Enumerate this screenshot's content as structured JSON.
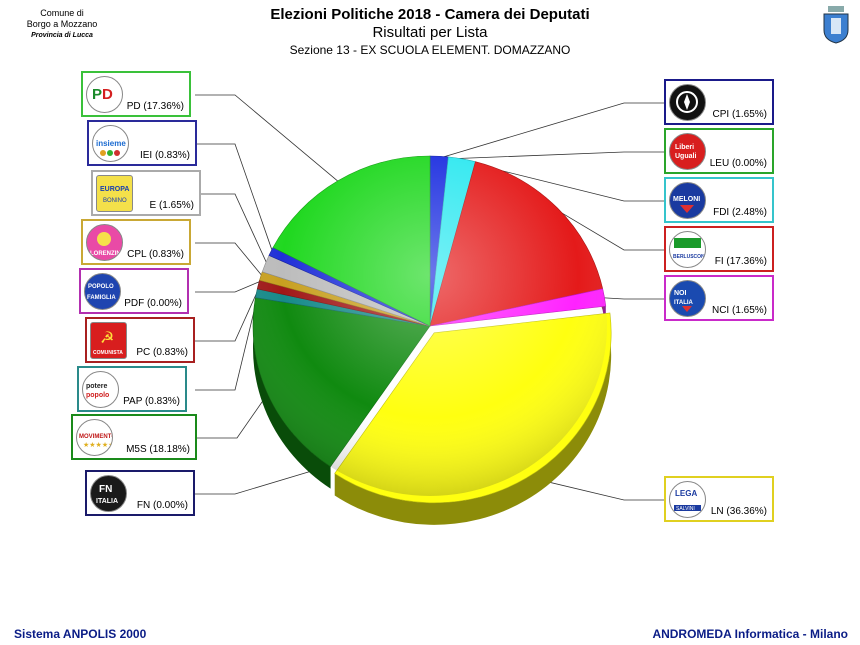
{
  "header": {
    "title": "Elezioni Politiche 2018 - Camera dei Deputati",
    "subtitle": "Risultati per Lista",
    "section": "Sezione 13 - EX SCUOLA ELEMENT. DOMAZZANO"
  },
  "comune": {
    "line1": "Comune di",
    "line2": "Borgo a Mozzano",
    "line3": "Provincia di Lucca"
  },
  "footer": {
    "left": "Sistema ANPOLIS 2000",
    "right": "ANDROMEDA Informatica - Milano"
  },
  "chart_data": {
    "type": "pie",
    "title": "Risultati per Lista",
    "slices": [
      {
        "label": "CPI (1.65%)",
        "name": "CPI",
        "value": 1.65,
        "color": "#1c2ee0"
      },
      {
        "label": "LEU (0.00%)",
        "name": "LEU",
        "value": 0.0,
        "color": "#e01010"
      },
      {
        "label": "FDI (2.48%)",
        "name": "FDI",
        "value": 2.48,
        "color": "#2ee8f0"
      },
      {
        "label": "FI (17.36%)",
        "name": "FI",
        "value": 17.36,
        "color": "#e41a1a"
      },
      {
        "label": "NCI (1.65%)",
        "name": "NCI",
        "value": 1.65,
        "color": "#ff22ff"
      },
      {
        "label": "LN (36.36%)",
        "name": "LN",
        "value": 36.36,
        "color": "#ffff10"
      },
      {
        "label": "FN (0.00%)",
        "name": "FN",
        "value": 0.0,
        "color": "#0a0a50"
      },
      {
        "label": "M5S (18.18%)",
        "name": "M5S",
        "value": 18.18,
        "color": "#108a10"
      },
      {
        "label": "PAP (0.83%)",
        "name": "PAP",
        "value": 0.83,
        "color": "#168a8a"
      },
      {
        "label": "PC (0.83%)",
        "name": "PC",
        "value": 0.83,
        "color": "#a01818"
      },
      {
        "label": "PDF (0.00%)",
        "name": "PDF",
        "value": 0.0,
        "color": "#a01890"
      },
      {
        "label": "CPL (0.83%)",
        "name": "CPL",
        "value": 0.83,
        "color": "#c8a020"
      },
      {
        "label": "E (1.65%)",
        "name": "E",
        "value": 1.65,
        "color": "#bcbcbc"
      },
      {
        "label": "IEI (0.83%)",
        "name": "IEI",
        "value": 0.83,
        "color": "#2030d8"
      },
      {
        "label": "PD (17.36%)",
        "name": "PD",
        "value": 17.36,
        "color": "#20d820"
      }
    ],
    "exploded_slice": "LN"
  }
}
